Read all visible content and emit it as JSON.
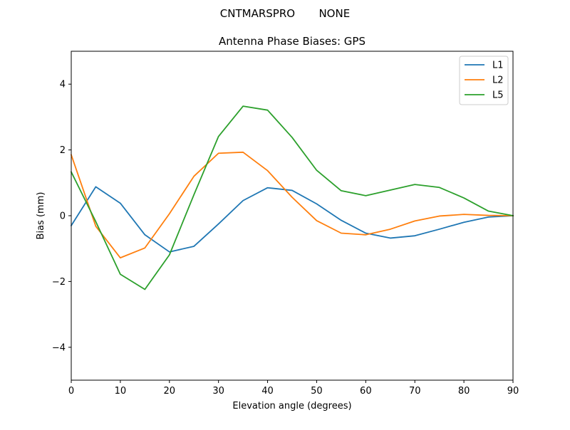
{
  "figure": {
    "suptitle": "CNTMARSPRO       NONE"
  },
  "chart_data": {
    "type": "line",
    "title": "Antenna Phase Biases: GPS",
    "xlabel": "Elevation angle (degrees)",
    "ylabel": "Bias (mm)",
    "xlim": [
      0,
      90
    ],
    "ylim": [
      -5,
      5
    ],
    "xticks": [
      0,
      10,
      20,
      30,
      40,
      50,
      60,
      70,
      80,
      90
    ],
    "yticks": [
      -4,
      -2,
      0,
      2,
      4
    ],
    "xtick_labels": [
      "0",
      "10",
      "20",
      "30",
      "40",
      "50",
      "60",
      "70",
      "80",
      "90"
    ],
    "ytick_labels": [
      "−4",
      "−2",
      "0",
      "2",
      "4"
    ],
    "grid": false,
    "legend_position": "top-right",
    "x": [
      0,
      5,
      10,
      15,
      20,
      25,
      30,
      35,
      40,
      45,
      50,
      55,
      60,
      65,
      70,
      75,
      80,
      85,
      90
    ],
    "series": [
      {
        "name": "L1",
        "color": "#1f77b4",
        "values": [
          -0.3,
          0.88,
          0.38,
          -0.58,
          -1.1,
          -0.93,
          -0.25,
          0.46,
          0.85,
          0.77,
          0.36,
          -0.14,
          -0.53,
          -0.68,
          -0.61,
          -0.41,
          -0.2,
          -0.04,
          0.0
        ]
      },
      {
        "name": "L2",
        "color": "#ff7f0e",
        "values": [
          1.85,
          -0.32,
          -1.28,
          -0.98,
          0.06,
          1.2,
          1.9,
          1.93,
          1.37,
          0.56,
          -0.15,
          -0.53,
          -0.58,
          -0.41,
          -0.16,
          -0.01,
          0.04,
          0.01,
          0.0
        ]
      },
      {
        "name": "L5",
        "color": "#2ca02c",
        "values": [
          1.33,
          -0.18,
          -1.78,
          -2.24,
          -1.19,
          0.64,
          2.41,
          3.33,
          3.21,
          2.38,
          1.38,
          0.76,
          0.61,
          0.78,
          0.95,
          0.86,
          0.54,
          0.14,
          0.0
        ]
      }
    ]
  }
}
